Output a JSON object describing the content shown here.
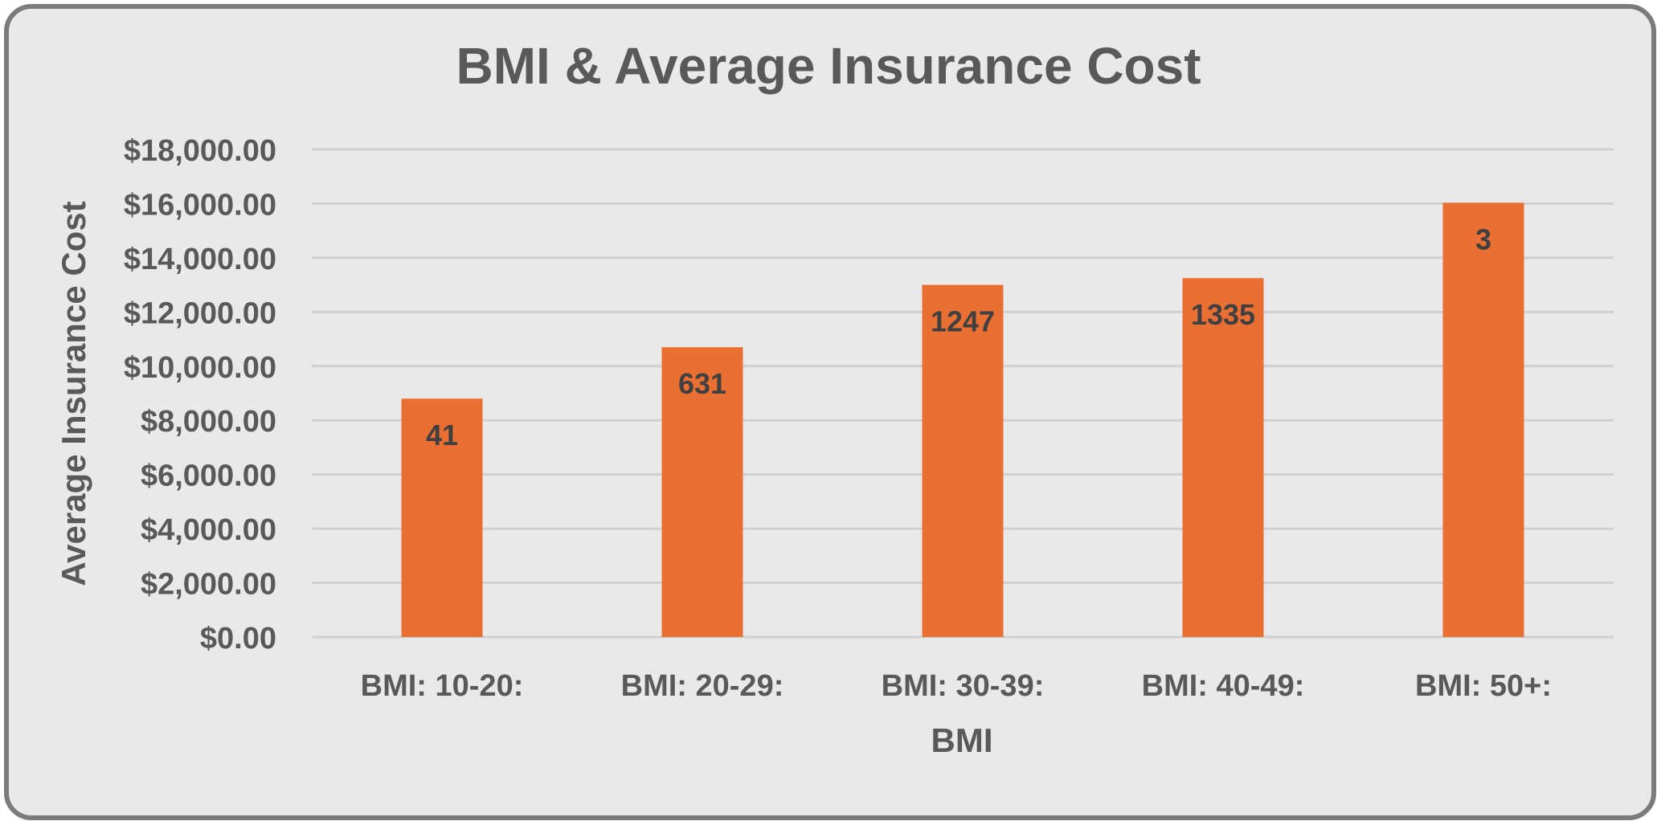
{
  "chart_data": {
    "type": "bar",
    "title": "BMI & Average Insurance Cost",
    "xlabel": "BMI",
    "ylabel": "Average Insurance Cost",
    "categories": [
      "BMI: 10-20:",
      "BMI: 20-29:",
      "BMI: 30-39:",
      "BMI: 40-49:",
      "BMI: 50+:"
    ],
    "series": [
      {
        "values": [
          8800,
          10700,
          13000,
          13250,
          16030
        ],
        "data_labels": [
          "41",
          "631",
          "1247",
          "1335",
          "3"
        ],
        "color": "#ea6f33"
      }
    ],
    "ylim": [
      0,
      18000
    ],
    "yticks": [
      0,
      2000,
      4000,
      6000,
      8000,
      10000,
      12000,
      14000,
      16000,
      18000
    ],
    "ytick_labels": [
      "$0.00",
      "$2,000.00",
      "$4,000.00",
      "$6,000.00",
      "$8,000.00",
      "$10,000.00",
      "$12,000.00",
      "$14,000.00",
      "$16,000.00",
      "$18,000.00"
    ],
    "grid": true,
    "legend": "none"
  }
}
